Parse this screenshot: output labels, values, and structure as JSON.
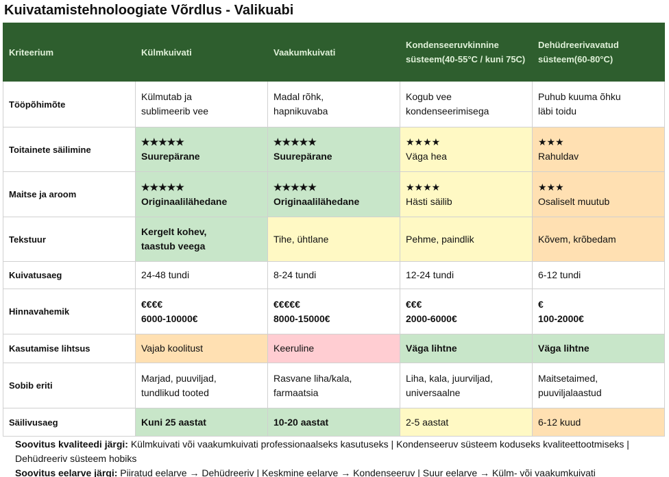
{
  "title": "Kuivatamistehnoloogiate Võrdlus - Valikuabi",
  "table": {
    "header": [
      {
        "lines": [
          "Kriteerium"
        ]
      },
      {
        "lines": [
          "Külmkuivati"
        ]
      },
      {
        "lines": [
          "Vaakumkuivati"
        ]
      },
      {
        "lines": [
          "Kondenseeruv",
          "kinnine süsteem",
          "(40-55°C / kuni 75C)"
        ]
      },
      {
        "lines": [
          "Dehüdreeriv",
          "avatud süsteem",
          "(60-80°C)"
        ]
      }
    ],
    "rows": [
      {
        "label": "Tööpõhimõte",
        "cells": [
          {
            "lines": [
              "Külmutab ja",
              "sublimeerib vee"
            ]
          },
          {
            "lines": [
              "Madal rõhk,",
              "hapnikuvaba"
            ]
          },
          {
            "lines": [
              "Kogub vee",
              "kondenseerimisega"
            ]
          },
          {
            "lines": [
              "Puhub kuuma õhku",
              "läbi toidu"
            ]
          }
        ]
      },
      {
        "label": "Toitainete säilimine",
        "cells": [
          {
            "lines": [
              "★★★★★",
              "Suurepärane"
            ],
            "color": "#c8e6c9",
            "bold": true
          },
          {
            "lines": [
              "★★★★★",
              "Suurepärane"
            ],
            "color": "#c8e6c9",
            "bold": true
          },
          {
            "lines": [
              "★★★★",
              "Väga hea"
            ],
            "color": "#fff9c4"
          },
          {
            "lines": [
              "★★★",
              "Rahuldav"
            ],
            "color": "#ffe0b2"
          }
        ]
      },
      {
        "label": "Maitse ja aroom",
        "cells": [
          {
            "lines": [
              "★★★★★",
              "Originaalilähedane"
            ],
            "color": "#c8e6c9",
            "bold": true
          },
          {
            "lines": [
              "★★★★★",
              "Originaalilähedane"
            ],
            "color": "#c8e6c9",
            "bold": true
          },
          {
            "lines": [
              "★★★★",
              "Hästi säilib"
            ],
            "color": "#fff9c4"
          },
          {
            "lines": [
              "★★★",
              "Osaliselt muutub"
            ],
            "color": "#ffe0b2"
          }
        ]
      },
      {
        "label": "Tekstuur",
        "cells": [
          {
            "lines": [
              "Kergelt kohev,",
              "taastub veega"
            ],
            "color": "#c8e6c9",
            "bold": true
          },
          {
            "lines": [
              "Tihe, ühtlane"
            ],
            "color": "#fff9c4"
          },
          {
            "lines": [
              "Pehme, paindlik"
            ],
            "color": "#fff9c4"
          },
          {
            "lines": [
              "Kõvem, krõbedam"
            ],
            "color": "#ffe0b2"
          }
        ]
      },
      {
        "label": "Kuivatusaeg",
        "cells": [
          {
            "lines": [
              "24-48 tundi"
            ]
          },
          {
            "lines": [
              "8-24 tundi"
            ]
          },
          {
            "lines": [
              "12-24 tundi"
            ]
          },
          {
            "lines": [
              "6-12 tundi"
            ]
          }
        ]
      },
      {
        "label": "Hinnavahemik",
        "cells": [
          {
            "lines": [
              "€€€€",
              "6000-10000€"
            ],
            "bold": true
          },
          {
            "lines": [
              "€€€€€",
              "8000-15000€"
            ],
            "bold": true
          },
          {
            "lines": [
              "€€€",
              "2000-6000€"
            ],
            "bold": true
          },
          {
            "lines": [
              "€",
              "100-2000€"
            ],
            "bold": true
          }
        ]
      },
      {
        "label": "Kasutamise lihtsus",
        "cells": [
          {
            "lines": [
              "Vajab koolitust"
            ],
            "color": "#ffe0b2"
          },
          {
            "lines": [
              "Keeruline"
            ],
            "color": "#ffcdd2"
          },
          {
            "lines": [
              "Väga lihtne"
            ],
            "color": "#c8e6c9",
            "bold": true
          },
          {
            "lines": [
              "Väga lihtne"
            ],
            "color": "#c8e6c9",
            "bold": true
          }
        ]
      },
      {
        "label": "Sobib eriti",
        "cells": [
          {
            "lines": [
              "Marjad, puuviljad,",
              "tundlikud tooted"
            ]
          },
          {
            "lines": [
              "Rasvane liha/kala,",
              "farmaatsia"
            ]
          },
          {
            "lines": [
              "Liha, kala, juurviljad,",
              "universaalne"
            ]
          },
          {
            "lines": [
              "Maitsetaimed,",
              "puuviljalaastud"
            ]
          }
        ]
      },
      {
        "label": "Säilivusaeg",
        "cells": [
          {
            "lines": [
              "Kuni 25 aastat"
            ],
            "color": "#c8e6c9",
            "bold": true
          },
          {
            "lines": [
              "10-20 aastat"
            ],
            "color": "#c8e6c9",
            "bold": true
          },
          {
            "lines": [
              "2-5 aastat"
            ],
            "color": "#fff9c4"
          },
          {
            "lines": [
              "6-12 kuud"
            ],
            "color": "#ffe0b2"
          }
        ]
      }
    ]
  },
  "footer": [
    {
      "label": "Soovitus kvaliteedi järgi:",
      "text": "Külmkuivati või vaakumkuivati professionaalseks kasutuseks | Kondenseeruv süsteem koduseks kvaliteettootmiseks | Dehüdreeriv süsteem hobiks"
    },
    {
      "label": "Soovitus eelarve järgi:",
      "text": "Piiratud eelarve → Dehüdreeriv | Keskmine eelarve → Kondenseeruv | Suur eelarve → Külm- või vaakumkuivati"
    }
  ]
}
